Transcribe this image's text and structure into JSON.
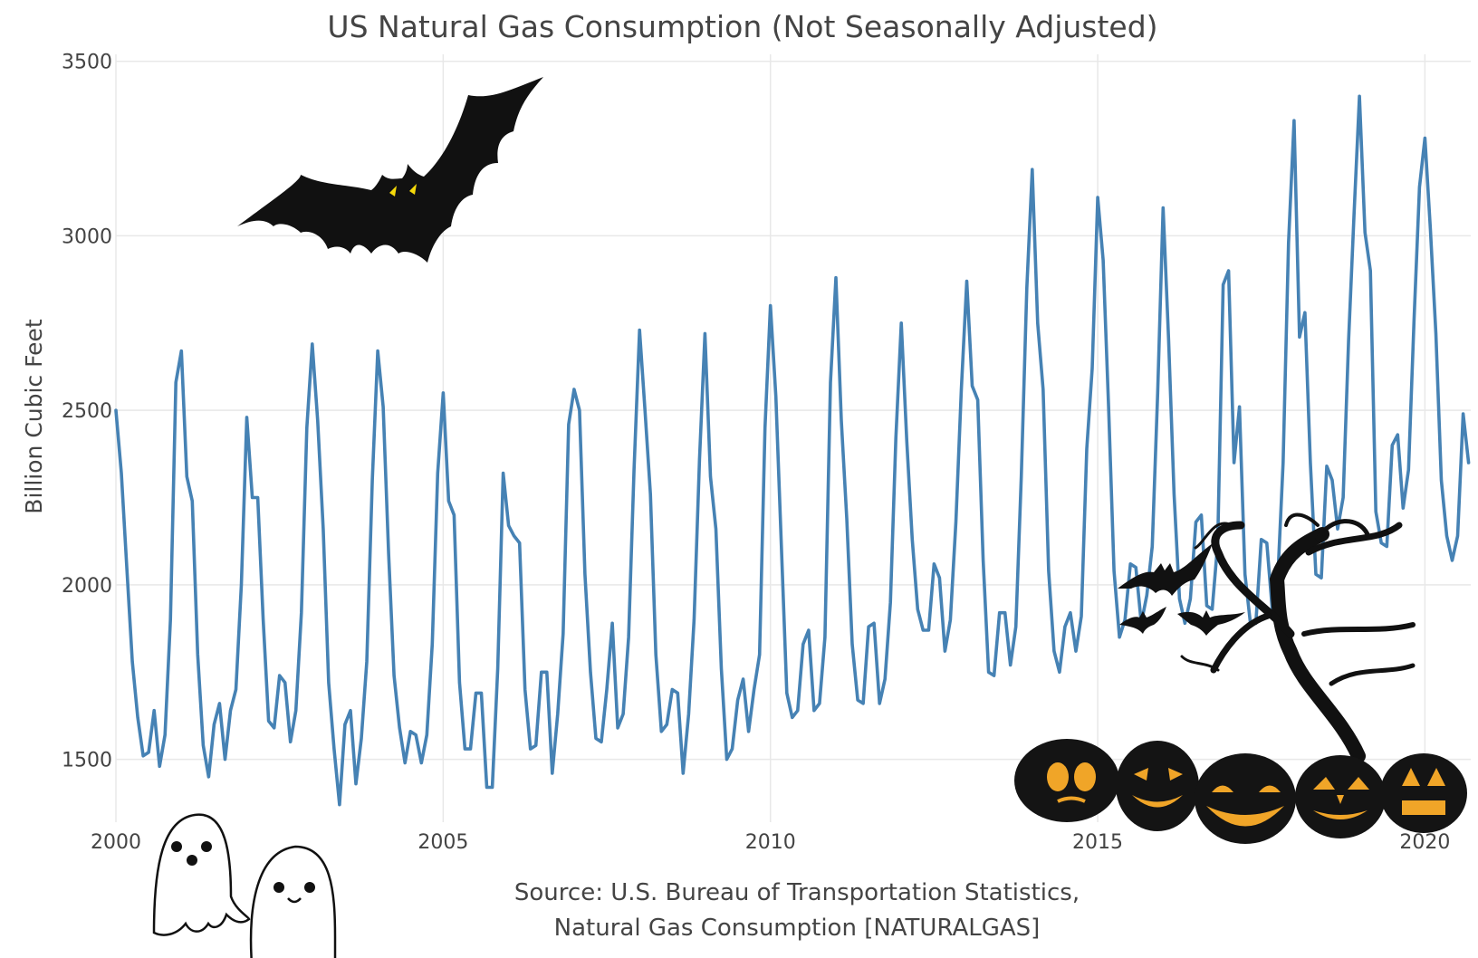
{
  "chart_data": {
    "type": "line",
    "title": "US Natural Gas Consumption (Not Seasonally Adjusted)",
    "xlabel": "",
    "ylabel": "Billion Cubic Feet",
    "source_lines": [
      "Source: U.S. Bureau of Transportation Statistics,",
      "Natural Gas Consumption [NATURALGAS]"
    ],
    "xlim": [
      2000,
      2020.7
    ],
    "ylim": [
      1320,
      3520
    ],
    "x_ticks": [
      2000,
      2005,
      2010,
      2015,
      2020
    ],
    "x_tick_labels": [
      "2000",
      "2005",
      "2010",
      "2015",
      "2020"
    ],
    "y_ticks": [
      1500,
      2000,
      2500,
      3000,
      3500
    ],
    "y_tick_labels": [
      "1500",
      "2000",
      "2500",
      "3000",
      "3500"
    ],
    "grid": true,
    "line_color": "#4682b4",
    "series": [
      {
        "annual_profiles": [
          {
            "year": 2000,
            "values": [
              2500,
              2320,
              2050,
              1780,
              1620,
              1510,
              1520,
              1640,
              1480,
              1570,
              1900,
              2580
            ]
          },
          {
            "year": 2001,
            "values": [
              2670,
              2310,
              2240,
              1800,
              1540,
              1450,
              1600,
              1660,
              1500,
              1640,
              1700,
              2000
            ]
          },
          {
            "year": 2002,
            "values": [
              2480,
              2250,
              2250,
              1900,
              1610,
              1590,
              1740,
              1720,
              1550,
              1640,
              1920,
              2450
            ]
          },
          {
            "year": 2003,
            "values": [
              2690,
              2470,
              2160,
              1720,
              1530,
              1370,
              1600,
              1640,
              1430,
              1560,
              1780,
              2300
            ]
          },
          {
            "year": 2004,
            "values": [
              2670,
              2510,
              2090,
              1740,
              1590,
              1490,
              1580,
              1570,
              1490,
              1570,
              1830,
              2320
            ]
          },
          {
            "year": 2005,
            "values": [
              2550,
              2240,
              2200,
              1720,
              1530,
              1530,
              1690,
              1690,
              1420,
              1420,
              1760,
              2320
            ]
          },
          {
            "year": 2006,
            "values": [
              2170,
              2140,
              2120,
              1700,
              1530,
              1540,
              1750,
              1750,
              1460,
              1630,
              1860,
              2460
            ]
          },
          {
            "year": 2007,
            "values": [
              2560,
              2500,
              2030,
              1750,
              1560,
              1550,
              1700,
              1890,
              1590,
              1630,
              1850,
              2330
            ]
          },
          {
            "year": 2008,
            "values": [
              2730,
              2500,
              2260,
              1800,
              1580,
              1600,
              1700,
              1690,
              1460,
              1630,
              1900,
              2360
            ]
          },
          {
            "year": 2009,
            "values": [
              2720,
              2310,
              2160,
              1760,
              1500,
              1530,
              1670,
              1730,
              1580,
              1700,
              1800,
              2450
            ]
          },
          {
            "year": 2010,
            "values": [
              2800,
              2540,
              2110,
              1690,
              1620,
              1640,
              1830,
              1870,
              1640,
              1660,
              1850,
              2580
            ]
          },
          {
            "year": 2011,
            "values": [
              2880,
              2470,
              2190,
              1830,
              1670,
              1660,
              1880,
              1890,
              1660,
              1730,
              1950,
              2420
            ]
          },
          {
            "year": 2012,
            "values": [
              2750,
              2410,
              2130,
              1930,
              1870,
              1870,
              2060,
              2020,
              1810,
              1900,
              2180,
              2560
            ]
          },
          {
            "year": 2013,
            "values": [
              2870,
              2570,
              2530,
              2070,
              1750,
              1740,
              1920,
              1920,
              1770,
              1880,
              2310,
              2850
            ]
          },
          {
            "year": 2014,
            "values": [
              3190,
              2750,
              2560,
              2040,
              1810,
              1750,
              1880,
              1920,
              1810,
              1910,
              2390,
              2620
            ]
          },
          {
            "year": 2015,
            "values": [
              3110,
              2930,
              2510,
              2040,
              1850,
              1900,
              2060,
              2050,
              1890,
              1970,
              2110,
              2550
            ]
          },
          {
            "year": 2016,
            "values": [
              3080,
              2700,
              2260,
              1960,
              1890,
              1960,
              2180,
              2200,
              1940,
              1930,
              2120,
              2860
            ]
          },
          {
            "year": 2017,
            "values": [
              2900,
              2350,
              2510,
              2030,
              1890,
              1890,
              2130,
              2120,
              1930,
              2010,
              2350,
              2980
            ]
          },
          {
            "year": 2018,
            "values": [
              3330,
              2710,
              2780,
              2350,
              2030,
              2020,
              2340,
              2300,
              2160,
              2250,
              2700,
              3060
            ]
          },
          {
            "year": 2019,
            "values": [
              3400,
              3010,
              2900,
              2210,
              2120,
              2110,
              2400,
              2430,
              2220,
              2330,
              2760,
              3140
            ]
          },
          {
            "year": 2020,
            "values": [
              3280,
              3020,
              2720,
              2300,
              2140,
              2070,
              2140,
              2490,
              2350
            ]
          }
        ]
      }
    ]
  },
  "decorations": {
    "icons": [
      "bat-icon",
      "ghost-icon",
      "pumpkin-icon",
      "spooky-tree-icon"
    ],
    "bat_color": "#111111",
    "bat_eye_color": "#f5d90a",
    "pumpkin_glow": "#f0a528"
  }
}
